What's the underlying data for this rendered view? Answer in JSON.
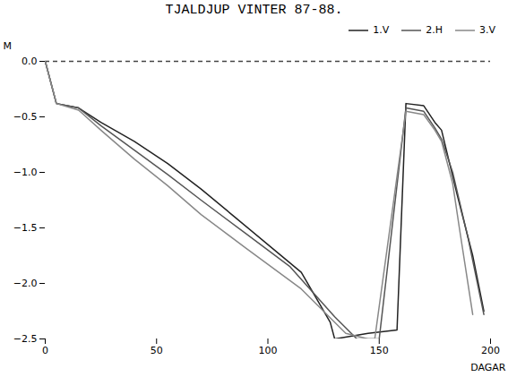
{
  "chart_data": {
    "type": "line",
    "title": "TJALDJUP VINTER 87-88.",
    "xlabel": "DAGAR",
    "ylabel": "M",
    "xlim": [
      0,
      200
    ],
    "xticks": [
      0,
      50,
      100,
      150,
      200
    ],
    "ylim": [
      -2.5,
      0
    ],
    "yticks": [
      {
        "value": 0,
        "label": "0.0"
      },
      {
        "value": -0.5,
        "label": "−0.5"
      },
      {
        "value": -1,
        "label": "−1.0"
      },
      {
        "value": -1.5,
        "label": "−1.5"
      },
      {
        "value": -2,
        "label": "−2.0"
      },
      {
        "value": -2.5,
        "label": "−2.5"
      }
    ],
    "grid": false,
    "legend": "upper right",
    "series": [
      {
        "name": "1.V",
        "color": "#222222",
        "x": [
          0,
          5,
          15,
          25,
          40,
          55,
          70,
          85,
          100,
          115,
          128,
          130,
          145,
          158,
          162,
          170,
          175,
          178,
          185,
          192,
          197
        ],
        "values": [
          0,
          -0.38,
          -0.42,
          -0.55,
          -0.72,
          -0.92,
          -1.15,
          -1.4,
          -1.65,
          -1.9,
          -2.35,
          -2.5,
          -2.45,
          -2.42,
          -0.38,
          -0.4,
          -0.55,
          -0.62,
          -1.2,
          -1.75,
          -2.25
        ]
      },
      {
        "name": "2.H",
        "color": "#555555",
        "x": [
          0,
          5,
          15,
          25,
          40,
          55,
          70,
          90,
          110,
          130,
          140,
          150,
          162,
          170,
          175,
          178,
          183,
          190,
          197
        ],
        "values": [
          0,
          -0.38,
          -0.42,
          -0.58,
          -0.8,
          -1.02,
          -1.25,
          -1.55,
          -1.85,
          -2.3,
          -2.5,
          -2.5,
          -0.42,
          -0.45,
          -0.6,
          -0.7,
          -1.0,
          -1.6,
          -2.28
        ]
      },
      {
        "name": "3.V",
        "color": "#888888",
        "x": [
          0,
          5,
          15,
          25,
          40,
          55,
          70,
          90,
          115,
          135,
          145,
          148,
          162,
          170,
          175,
          178,
          183,
          186,
          192
        ],
        "values": [
          0,
          -0.38,
          -0.44,
          -0.62,
          -0.88,
          -1.12,
          -1.38,
          -1.68,
          -2.05,
          -2.45,
          -2.5,
          -2.5,
          -0.45,
          -0.48,
          -0.62,
          -0.72,
          -1.1,
          -1.5,
          -2.28
        ]
      }
    ],
    "reference_lines": [
      {
        "y": 0,
        "color": "#444444",
        "line_style": "dashed"
      }
    ]
  }
}
